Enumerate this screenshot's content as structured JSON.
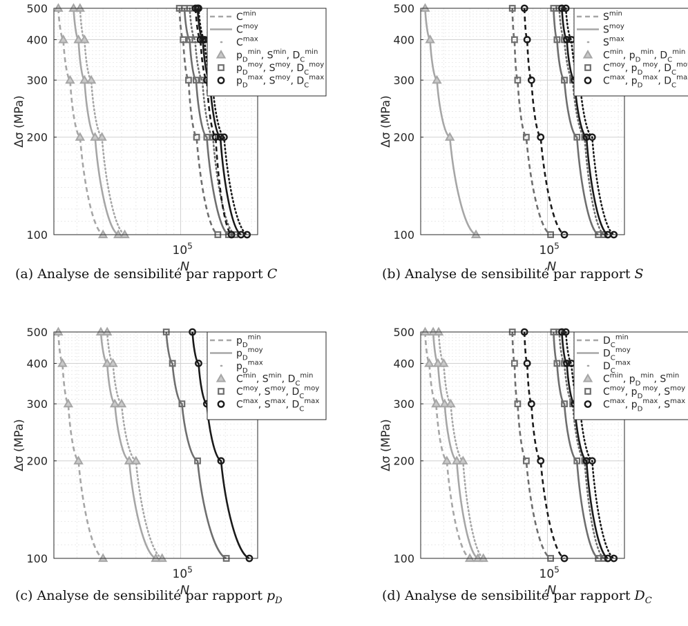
{
  "figure": {
    "captions": [
      {
        "prefix": "(a) Analyse de sensibilité par rapport ",
        "var": "C",
        "sub": ""
      },
      {
        "prefix": "(b) Analyse de sensibilité par rapport ",
        "var": "S",
        "sub": ""
      },
      {
        "prefix": "(c) Analyse de sensibilité par rapport ",
        "var": "p",
        "sub": "D"
      },
      {
        "prefix": "(d) Analyse de sensibilité par rapport ",
        "var": "D",
        "sub": "C"
      }
    ]
  },
  "chart_data": [
    {
      "type": "line",
      "ylabel": "Δσ (MPa)",
      "xlabel": "N",
      "x_scale": "log",
      "y_scale": "log",
      "xlim": [
        14000,
        330000
      ],
      "ylim": [
        100,
        500
      ],
      "x_tick_label": "10^5",
      "y_ticks": [
        "100",
        "200",
        "300",
        "400",
        "500"
      ],
      "grid": true,
      "legend_position": "top-right",
      "colors": {
        "light": "#a6a6a6",
        "mid": "#6e6e6e",
        "dark": "#1a1a1a"
      },
      "legend": [
        "C^min",
        "C^moy",
        "C^max",
        "p_D^min, S^min, D_C^min",
        "p_D^moy, S^moy, D_C^moy",
        "p_D^max, S^moy, D_C^max"
      ],
      "y": [
        500,
        400,
        300,
        200,
        100
      ],
      "series": [
        {
          "name": "C^min",
          "tone": "light",
          "dash": "dash",
          "marker": "triangle",
          "x": [
            15000,
            16200,
            18000,
            21000,
            30000
          ]
        },
        {
          "name": "C^moy",
          "tone": "light",
          "dash": "solid",
          "marker": "triangle",
          "x": [
            19000,
            20500,
            22500,
            26500,
            38000
          ]
        },
        {
          "name": "C^max",
          "tone": "light",
          "dash": "dot",
          "marker": "triangle",
          "x": [
            21000,
            22500,
            25000,
            29500,
            42000
          ]
        },
        {
          "name": "C^min",
          "tone": "mid",
          "dash": "dash",
          "marker": "square",
          "x": [
            98000,
            104000,
            113000,
            128000,
            178000
          ]
        },
        {
          "name": "C^moy",
          "tone": "mid",
          "dash": "solid",
          "marker": "square",
          "x": [
            106000,
            115000,
            127000,
            150000,
            210000
          ]
        },
        {
          "name": "C^max",
          "tone": "mid",
          "dash": "dot",
          "marker": "square",
          "x": [
            115000,
            125000,
            140000,
            165000,
            232000
          ]
        },
        {
          "name": "C^min",
          "tone": "dark",
          "dash": "dash",
          "marker": "circle",
          "x": [
            126000,
            136000,
            150000,
            172000,
            220000
          ]
        },
        {
          "name": "C^moy",
          "tone": "dark",
          "dash": "solid",
          "marker": "circle",
          "x": [
            130000,
            141000,
            157000,
            185000,
            255000
          ]
        },
        {
          "name": "C^max",
          "tone": "dark",
          "dash": "dot",
          "marker": "circle",
          "x": [
            132000,
            145000,
            163000,
            196000,
            280000
          ]
        }
      ]
    },
    {
      "type": "line",
      "ylabel": "Δσ (MPa)",
      "xlabel": "N",
      "x_scale": "log",
      "y_scale": "log",
      "xlim": [
        14000,
        330000
      ],
      "ylim": [
        100,
        500
      ],
      "x_tick_label": "10^5",
      "y_ticks": [
        "100",
        "200",
        "300",
        "400",
        "500"
      ],
      "grid": true,
      "legend_position": "top-right",
      "colors": {
        "light": "#a6a6a6",
        "mid": "#6e6e6e",
        "dark": "#1a1a1a"
      },
      "legend": [
        "S^min",
        "S^moy",
        "S^max",
        "C^min, p_D^min, D_C^min",
        "C^moy, p_D^moy, D_C^moy",
        "C^max, p_D^max, D_C^max"
      ],
      "y": [
        500,
        400,
        300,
        200,
        100
      ],
      "series": [
        {
          "name": "S^moy",
          "tone": "light",
          "dash": "solid",
          "marker": "triangle",
          "x": [
            15000,
            16200,
            18000,
            22000,
            33000
          ]
        },
        {
          "name": "S^min",
          "tone": "mid",
          "dash": "dash",
          "marker": "square",
          "x": [
            58000,
            60000,
            63000,
            72000,
            105000
          ]
        },
        {
          "name": "S^moy",
          "tone": "mid",
          "dash": "solid",
          "marker": "square",
          "x": [
            110000,
            116000,
            130000,
            158000,
            220000
          ]
        },
        {
          "name": "S^max",
          "tone": "mid",
          "dash": "dot",
          "marker": "square",
          "x": [
            120000,
            130000,
            148000,
            178000,
            240000
          ]
        },
        {
          "name": "S^min",
          "tone": "dark",
          "dash": "dash",
          "marker": "circle",
          "x": [
            70000,
            73000,
            78000,
            90000,
            130000
          ]
        },
        {
          "name": "S^moy",
          "tone": "dark",
          "dash": "solid",
          "marker": "circle",
          "x": [
            125000,
            135000,
            152000,
            183000,
            255000
          ]
        },
        {
          "name": "S^max",
          "tone": "dark",
          "dash": "dot",
          "marker": "circle",
          "x": [
            133000,
            145000,
            165000,
            200000,
            280000
          ]
        }
      ]
    },
    {
      "type": "line",
      "ylabel": "Δσ (MPa)",
      "xlabel": "N",
      "x_scale": "log",
      "y_scale": "log",
      "xlim": [
        14000,
        330000
      ],
      "ylim": [
        100,
        500
      ],
      "x_tick_label": "10^5",
      "y_ticks": [
        "100",
        "200",
        "300",
        "400",
        "500"
      ],
      "grid": true,
      "legend_position": "top-right",
      "colors": {
        "light": "#a6a6a6",
        "mid": "#6e6e6e",
        "dark": "#1a1a1a"
      },
      "legend": [
        "p_D^min",
        "p_D^moy",
        "p_D^max",
        "C^min, S^min, D_C^min",
        "C^moy, S^moy, D_C^moy",
        "C^max, S^max, D_C^max"
      ],
      "y": [
        500,
        400,
        300,
        200,
        100
      ],
      "series": [
        {
          "name": "p_D^min",
          "tone": "light",
          "dash": "dash",
          "marker": "triangle",
          "x": [
            15000,
            16000,
            17500,
            20500,
            30000
          ]
        },
        {
          "name": "p_D^moy",
          "tone": "light",
          "dash": "solid",
          "marker": "triangle",
          "x": [
            29000,
            32000,
            36000,
            45000,
            68000
          ]
        },
        {
          "name": "p_D^max",
          "tone": "light",
          "dash": "dot",
          "marker": "triangle",
          "x": [
            32000,
            35000,
            40000,
            50000,
            75000
          ]
        },
        {
          "name": "p_D^moy",
          "tone": "mid",
          "dash": "solid",
          "marker": "square",
          "x": [
            80000,
            88000,
            102000,
            130000,
            203000
          ]
        },
        {
          "name": "p_D^moy",
          "tone": "dark",
          "dash": "solid",
          "marker": "circle",
          "x": [
            120000,
            132000,
            150000,
            187000,
            290000
          ]
        }
      ]
    },
    {
      "type": "line",
      "ylabel": "Δσ (MPa)",
      "xlabel": "N",
      "x_scale": "log",
      "y_scale": "log",
      "xlim": [
        14000,
        330000
      ],
      "ylim": [
        100,
        500
      ],
      "x_tick_label": "10^5",
      "y_ticks": [
        "100",
        "200",
        "300",
        "400",
        "500"
      ],
      "grid": true,
      "legend_position": "top-right",
      "colors": {
        "light": "#a6a6a6",
        "mid": "#6e6e6e",
        "dark": "#1a1a1a"
      },
      "legend": [
        "D_C^min",
        "D_C^moy",
        "D_C^max",
        "C^min, p_D^min, S^min",
        "C^moy, p_D^moy, S^moy",
        "C^max, p_D^max, S^max"
      ],
      "y": [
        500,
        400,
        300,
        200,
        100
      ],
      "series": [
        {
          "name": "D_C^min",
          "tone": "light",
          "dash": "dash",
          "marker": "triangle",
          "x": [
            15000,
            16000,
            17800,
            21000,
            30000
          ]
        },
        {
          "name": "D_C^moy",
          "tone": "light",
          "dash": "solid",
          "marker": "triangle",
          "x": [
            17000,
            18300,
            20300,
            24500,
            34000
          ]
        },
        {
          "name": "D_C^max",
          "tone": "light",
          "dash": "dot",
          "marker": "triangle",
          "x": [
            18500,
            20000,
            22300,
            27000,
            37000
          ]
        },
        {
          "name": "D_C^min",
          "tone": "mid",
          "dash": "dash",
          "marker": "square",
          "x": [
            58000,
            60000,
            63000,
            72000,
            105000
          ]
        },
        {
          "name": "D_C^moy",
          "tone": "mid",
          "dash": "solid",
          "marker": "square",
          "x": [
            110000,
            116000,
            130000,
            158000,
            220000
          ]
        },
        {
          "name": "D_C^max",
          "tone": "mid",
          "dash": "dot",
          "marker": "square",
          "x": [
            120000,
            130000,
            148000,
            178000,
            240000
          ]
        },
        {
          "name": "D_C^min",
          "tone": "dark",
          "dash": "dash",
          "marker": "circle",
          "x": [
            70000,
            73000,
            78000,
            90000,
            130000
          ]
        },
        {
          "name": "D_C^moy",
          "tone": "dark",
          "dash": "solid",
          "marker": "circle",
          "x": [
            125000,
            135000,
            152000,
            183000,
            255000
          ]
        },
        {
          "name": "D_C^max",
          "tone": "dark",
          "dash": "dot",
          "marker": "circle",
          "x": [
            133000,
            145000,
            165000,
            200000,
            280000
          ]
        }
      ]
    }
  ]
}
